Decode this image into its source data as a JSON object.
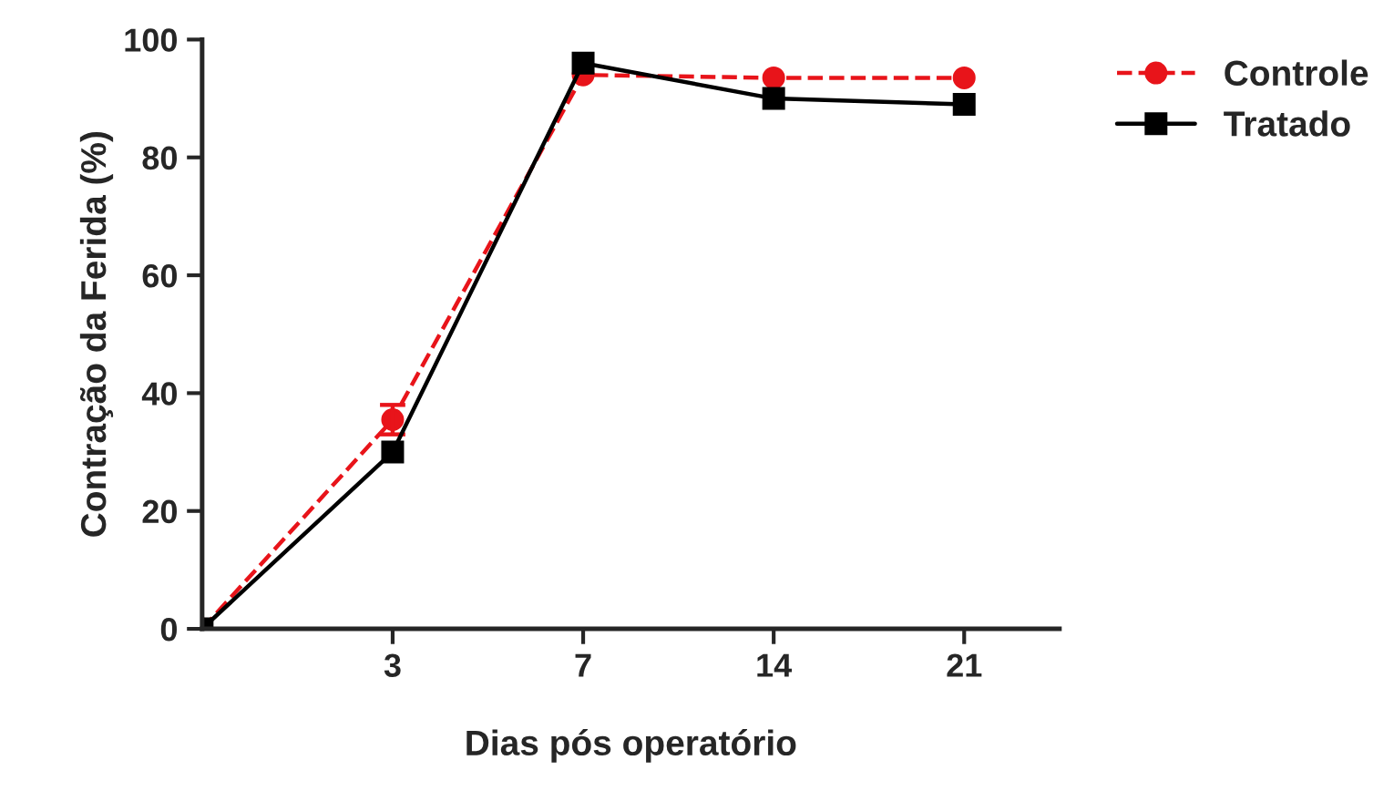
{
  "chart_data": {
    "type": "line",
    "xlabel": "Dias pós operatório",
    "ylabel": "Contração da Ferida (%)",
    "categories": [
      null,
      "3",
      "7",
      "14",
      "21"
    ],
    "series": [
      {
        "name": "Controle",
        "color": "#e8141a",
        "values": [
          0,
          35.5,
          94,
          93.5,
          93.5
        ],
        "errors": [
          null,
          2.5,
          null,
          null,
          null
        ],
        "marker": "circle",
        "line_style": "dashed"
      },
      {
        "name": "Tratado",
        "color": "#000000",
        "values": [
          0,
          30,
          96,
          90,
          89
        ],
        "marker": "square",
        "line_style": "solid"
      }
    ],
    "ylim": [
      0,
      100
    ],
    "yticks": [
      0,
      20,
      40,
      60,
      80,
      100
    ],
    "grid": false,
    "legend": "top right"
  }
}
